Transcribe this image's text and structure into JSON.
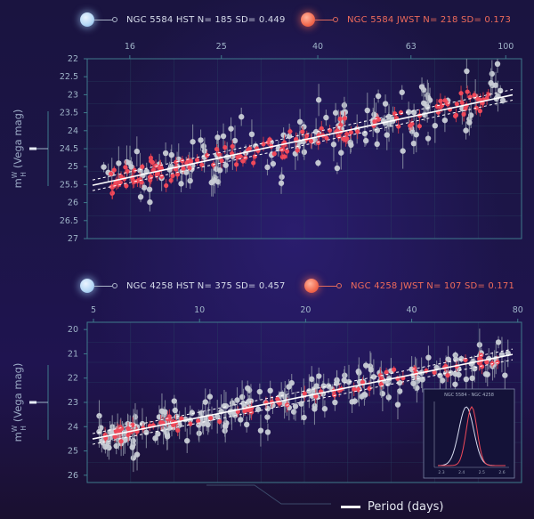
{
  "colors": {
    "hst": "#c9cdd6",
    "jwst": "#f0495a",
    "axis": "#3f7a8c",
    "grid": "#2a4a66",
    "tick": "#9fb4c8"
  },
  "legends": {
    "top": {
      "hst_label": "NGC 5584 HST N=  185 SD= 0.449",
      "jwst_label": "NGC 5584 JWST N=  218  SD= 0.173"
    },
    "bottom": {
      "hst_label": "NGC 4258 HST N=  375 SD= 0.457",
      "jwst_label": "NGC 4258 JWST N=  107  SD= 0.171"
    }
  },
  "footer": {
    "label": "Period (days)"
  },
  "chart_data": [
    {
      "type": "scatter",
      "title": "NGC 5584",
      "ylabel_main": "m",
      "ylabel_sup": "W",
      "ylabel_sub": "H",
      "ylabel_rest": "(Vega mag)",
      "xscale": "log",
      "xlim": [
        13,
        108
      ],
      "xticks": [
        16,
        25,
        40,
        63,
        100
      ],
      "ylim": [
        27,
        22
      ],
      "yticks": [
        22,
        22.5,
        23,
        23.5,
        24,
        24.5,
        25,
        25.5,
        26,
        26.5,
        27
      ],
      "fit": {
        "x": [
          13,
          108
        ],
        "y": [
          25.55,
          22.95
        ]
      },
      "series": [
        {
          "name": "NGC 5584 HST",
          "n": 185,
          "sd": 0.449
        },
        {
          "name": "NGC 5584 JWST",
          "n": 218,
          "sd": 0.173
        }
      ]
    },
    {
      "type": "scatter",
      "title": "NGC 4258",
      "ylabel_main": "m",
      "ylabel_sup": "W",
      "ylabel_sub": "H",
      "ylabel_rest": "(Vega mag)",
      "xscale": "log",
      "xlim": [
        4.8,
        82
      ],
      "xticks": [
        5,
        10,
        20,
        40,
        80
      ],
      "ylim": [
        26.3,
        19.7
      ],
      "yticks": [
        20,
        21,
        22,
        23,
        24,
        25,
        26
      ],
      "fit": {
        "x": [
          4.8,
          82
        ],
        "y": [
          24.55,
          20.95
        ]
      },
      "series": [
        {
          "name": "NGC 4258 HST",
          "n": 375,
          "sd": 0.457
        },
        {
          "name": "NGC 4258 JWST",
          "n": 107,
          "sd": 0.171
        }
      ],
      "inset": {
        "title": "NGC 5584 - NGC 4258",
        "xticks": [
          "2.3",
          "2.4",
          "2.5",
          "2.6"
        ]
      }
    }
  ]
}
